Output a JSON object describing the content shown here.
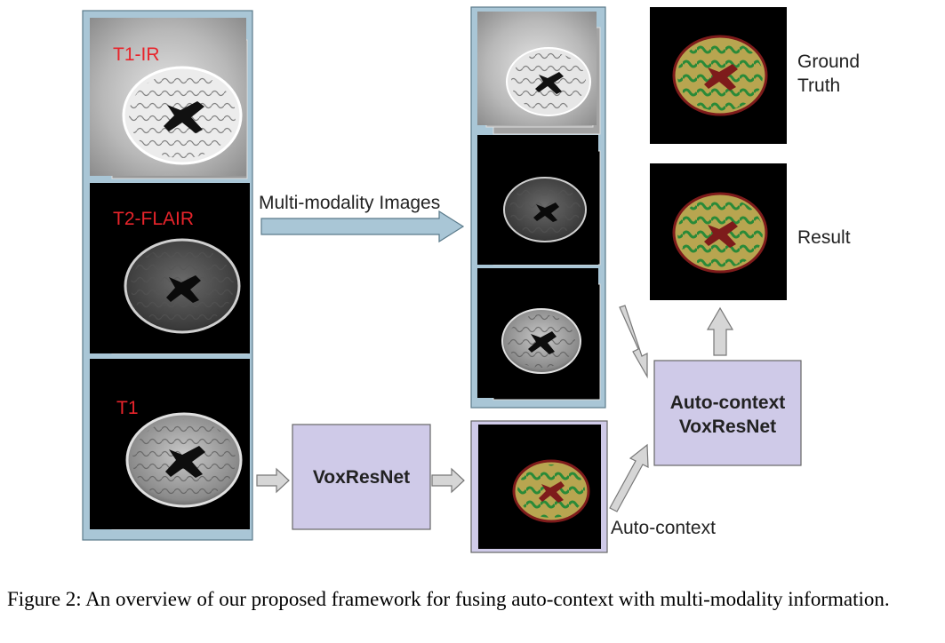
{
  "labels": {
    "t1ir": "T1-IR",
    "t2flair": "T2-FLAIR",
    "t1": "T1",
    "multi_modality": "Multi-modality Images",
    "voxresnet": "VoxResNet",
    "autocontext_net_line1": "Auto-context",
    "autocontext_net_line2": "VoxResNet",
    "autocontext": "Auto-context",
    "ground_truth_line1": "Ground",
    "ground_truth_line2": "Truth",
    "result": "Result"
  },
  "caption": "Figure 2: An overview of our proposed framework for fusing auto-context with multi-modality information.",
  "colors": {
    "panel": "#a9c6d6",
    "box": "#cfcae8",
    "arrow": "#d6d6d6",
    "label_red": "#e8242b",
    "wm": "#b8a550",
    "gm": "#2a8a38",
    "csf": "#7e1b1b"
  }
}
